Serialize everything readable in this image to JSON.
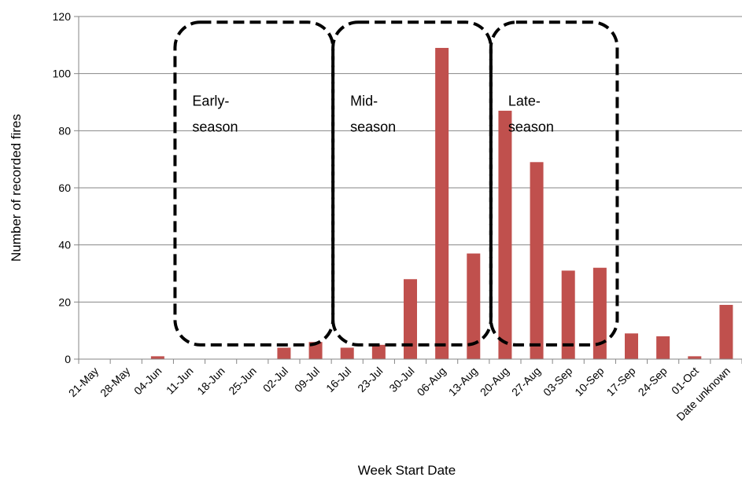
{
  "chart_data": {
    "type": "bar",
    "xlabel": "Week Start Date",
    "ylabel": "Number of recorded fires",
    "ylim": [
      0,
      120
    ],
    "yticks": [
      0,
      20,
      40,
      60,
      80,
      100,
      120
    ],
    "grid": true,
    "bar_color": "#c0504d",
    "categories": [
      "21-May",
      "28-May",
      "04-Jun",
      "11-Jun",
      "18-Jun",
      "25-Jun",
      "02-Jul",
      "09-Jul",
      "16-Jul",
      "23-Jul",
      "30-Jul",
      "06-Aug",
      "13-Aug",
      "20-Aug",
      "27-Aug",
      "03-Sep",
      "10-Sep",
      "17-Sep",
      "24-Sep",
      "01-Oct",
      "Date unknown"
    ],
    "values": [
      0,
      0,
      1,
      0,
      0,
      0,
      4,
      6,
      4,
      5,
      28,
      109,
      37,
      87,
      69,
      31,
      32,
      9,
      8,
      1,
      19
    ],
    "annotations": [
      {
        "lines": [
          "Early-",
          "season"
        ],
        "from": "11-Jun",
        "to": "16-Jul"
      },
      {
        "lines": [
          "Mid-",
          "season"
        ],
        "from": "16-Jul",
        "to": "20-Aug"
      },
      {
        "lines": [
          "Late-",
          "season"
        ],
        "from": "20-Aug",
        "to": "17-Sep"
      }
    ]
  }
}
